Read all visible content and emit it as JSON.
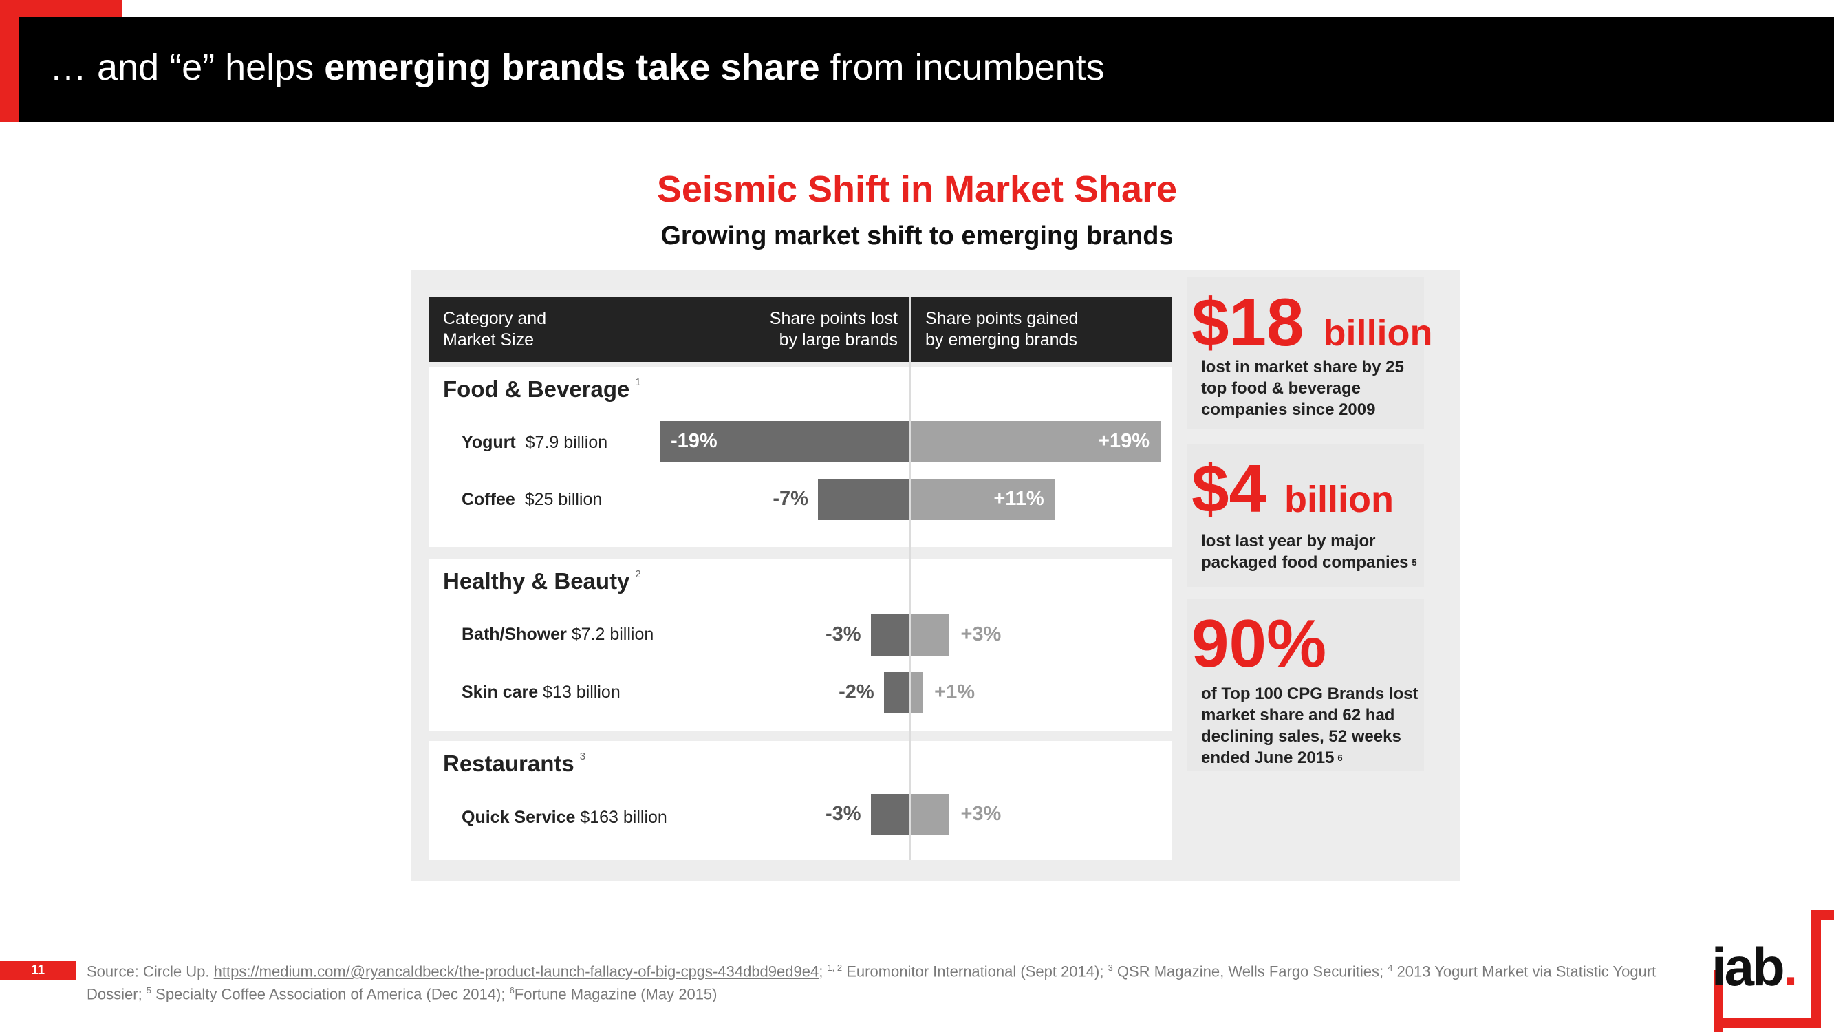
{
  "header": {
    "title_pre": "… and “e” helps ",
    "title_bold": "emerging brands take share",
    "title_post": " from incumbents"
  },
  "chart_data": {
    "type": "bar",
    "title": "Seismic Shift in Market Share",
    "subtitle": "Growing market shift to emerging brands",
    "columns": {
      "category": [
        "Category and",
        "Market Size"
      ],
      "lost": [
        "Share points lost",
        "by large brands"
      ],
      "gained": [
        "Share points gained",
        "by emerging brands"
      ]
    },
    "scale_max": 19,
    "sections": [
      {
        "name": "Food & Beverage",
        "note": "1",
        "rows": [
          {
            "category": "Yogurt",
            "size": "$7.9 billion",
            "lost": -19,
            "gained": 19,
            "lost_label": "-19%",
            "gained_label": "+19%"
          },
          {
            "category": "Coffee",
            "size": "$25 billion",
            "lost": -7,
            "gained": 11,
            "lost_label": "-7%",
            "gained_label": "+11%"
          }
        ]
      },
      {
        "name": "Healthy & Beauty",
        "note": "2",
        "rows": [
          {
            "category": "Bath/Shower",
            "size": "$7.2 billion",
            "lost": -3,
            "gained": 3,
            "lost_label": "-3%",
            "gained_label": "+3%"
          },
          {
            "category": "Skin care",
            "size": "$13 billion",
            "lost": -2,
            "gained": 1,
            "lost_label": "-2%",
            "gained_label": "+1%"
          }
        ]
      },
      {
        "name": "Restaurants",
        "note": "3",
        "rows": [
          {
            "category": "Quick Service",
            "size": "$163 billion",
            "lost": -3,
            "gained": 3,
            "lost_label": "-3%",
            "gained_label": "+3%"
          }
        ]
      }
    ],
    "colors": {
      "lost": "#6b6b6b",
      "gained": "#a3a3a3",
      "accent": "#e8231f"
    }
  },
  "stats": [
    {
      "number": "$18",
      "unit": "billion",
      "desc": "lost in market share by 25 top food & beverage companies since 2009",
      "note": ""
    },
    {
      "number": "$4",
      "unit": "billion",
      "desc": "lost last year by major packaged food companies",
      "note": "5"
    },
    {
      "number": "90%",
      "unit": "",
      "desc": "of Top 100 CPG Brands lost market share and 62 had declining sales, 52 weeks ended June 2015",
      "note": "6"
    }
  ],
  "footer": {
    "page_number": "11",
    "source_prefix": "Source:  Circle Up. ",
    "source_link": "https://medium.com/@ryancaldbeck/the-product-launch-fallacy-of-big-cpgs-434dbd9ed9e4",
    "src1_sup": "1, 2",
    "src1_text": " Euromonitor International (Sept 2014); ",
    "src3_sup": "3",
    "src3_text": " QSR Magazine, Wells Fargo Securities; ",
    "src4_sup": "4",
    "src4_text": " 2013 Yogurt Market via Statistic Yogurt Dossier; ",
    "src5_sup": "5",
    "src5_text": " Specialty Coffee Association of America (Dec 2014); ",
    "src6_sup": "6",
    "src6_text": "Fortune Magazine (May 2015)",
    "logo_text": "iab",
    "logo_dot": "."
  }
}
